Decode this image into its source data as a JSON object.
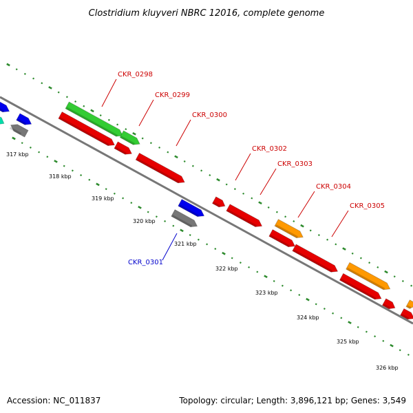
{
  "title": "Clostridium kluyveri NBRC 12016, complete genome",
  "footer": {
    "accession": "Accession: NC_011837",
    "summary": "Topology: circular; Length: 3,896,121 bp; Genes: 3,549"
  },
  "colors": {
    "backbone": "#777777",
    "tick_dots": "#2e8b2e",
    "label_forward": "#cc0000",
    "label_reverse": "#0000cc",
    "cds_red": "#e60000",
    "cds_green": "#33cc33",
    "cds_orange": "#ff9900",
    "cds_blue": "#0000ee",
    "cds_gray": "#777777",
    "cds_teal": "#00ddaa"
  },
  "scale": {
    "ticks": [
      "317 kbp",
      "318 kbp",
      "319 kbp",
      "320 kbp",
      "321 kbp",
      "322 kbp",
      "323 kbp",
      "324 kbp",
      "325 kbp",
      "326 kbp"
    ]
  },
  "gene_labels": [
    {
      "text": "CKR_0298",
      "strand": "forward"
    },
    {
      "text": "CKR_0299",
      "strand": "forward"
    },
    {
      "text": "CKR_0300",
      "strand": "forward"
    },
    {
      "text": "CKR_0302",
      "strand": "forward"
    },
    {
      "text": "CKR_0303",
      "strand": "forward"
    },
    {
      "text": "CKR_0304",
      "strand": "forward"
    },
    {
      "text": "CKR_0305",
      "strand": "forward"
    },
    {
      "text": "CKR_0301",
      "strand": "reverse"
    }
  ]
}
